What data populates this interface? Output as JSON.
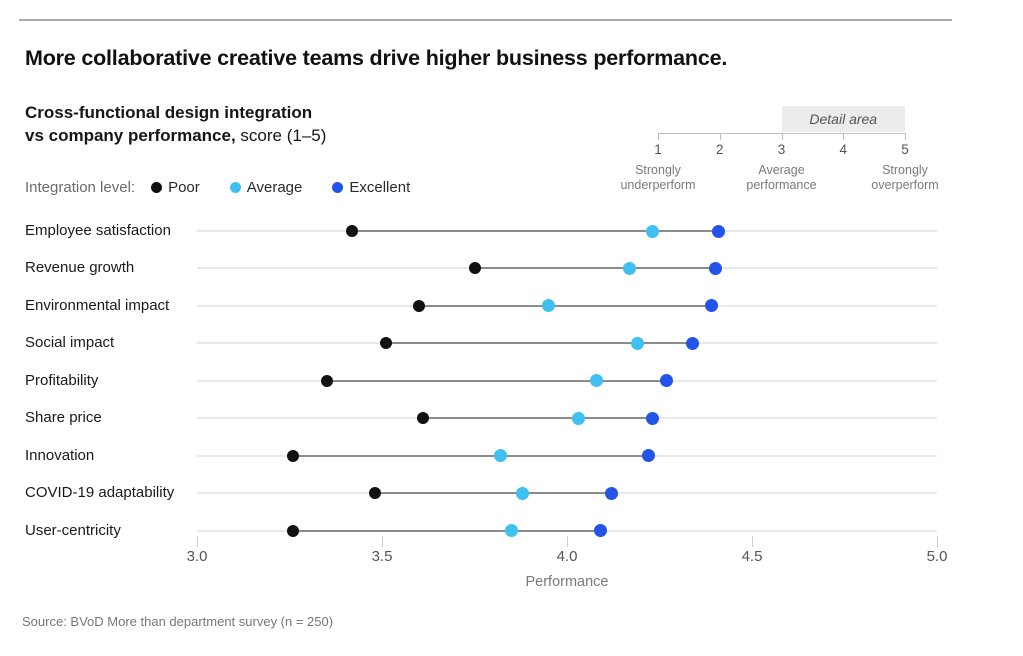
{
  "page": {
    "title": "More collaborative creative teams drive higher business performance.",
    "subtitle_line1": "Cross-functional design integration",
    "subtitle_line2_bold": "vs company performance,",
    "subtitle_line2_regular": " score (1–5)",
    "source": "Source: BVoD More than department survey (n = 250)"
  },
  "legend": {
    "label": "Integration level:",
    "items": [
      {
        "name": "Poor",
        "color": "#111111"
      },
      {
        "name": "Average",
        "color": "#3fc0f0"
      },
      {
        "name": "Excellent",
        "color": "#2354e8"
      }
    ]
  },
  "detail_area": {
    "label": "Detail area",
    "scale_min": 1,
    "scale_max": 5,
    "ticks": [
      1,
      2,
      3,
      4,
      5
    ],
    "highlight_range": [
      3,
      5
    ],
    "tick_labels": [
      {
        "tick": 1,
        "lines": [
          "Strongly",
          "underperform"
        ]
      },
      {
        "tick": 3,
        "lines": [
          "Average",
          "performance"
        ]
      },
      {
        "tick": 5,
        "lines": [
          "Strongly",
          "overperform"
        ]
      }
    ]
  },
  "chart_data": {
    "type": "scatter",
    "subtype": "dumbbell-dot-plot",
    "title": "Cross-functional design integration vs company performance, score (1–5)",
    "categories": [
      "Employee satisfaction",
      "Revenue growth",
      "Environmental impact",
      "Social impact",
      "Profitability",
      "Share price",
      "Innovation",
      "COVID-19 adaptability",
      "User-centricity"
    ],
    "series": [
      {
        "name": "Poor",
        "color": "#111111",
        "values": [
          3.42,
          3.75,
          3.6,
          3.51,
          3.35,
          3.61,
          3.26,
          3.48,
          3.26
        ]
      },
      {
        "name": "Average",
        "color": "#3fc0f0",
        "values": [
          4.23,
          4.17,
          3.95,
          4.19,
          4.08,
          4.03,
          3.82,
          3.88,
          3.85
        ]
      },
      {
        "name": "Excellent",
        "color": "#2354e8",
        "values": [
          4.41,
          4.4,
          4.39,
          4.34,
          4.27,
          4.23,
          4.22,
          4.12,
          4.09
        ]
      }
    ],
    "xlabel": "Performance",
    "x_ticks": [
      3.0,
      3.5,
      4.0,
      4.5,
      5.0
    ],
    "x_tick_labels": [
      "3.0",
      "3.5",
      "4.0",
      "4.5",
      "5.0"
    ],
    "xlim": [
      3.0,
      5.0
    ],
    "grid": false,
    "legend_position": "top-left"
  }
}
